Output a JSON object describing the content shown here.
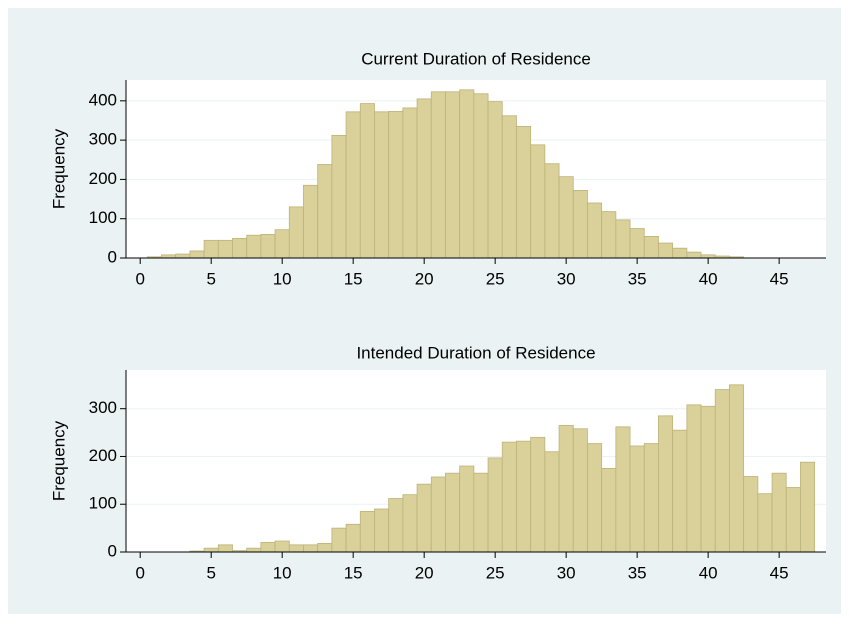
{
  "chart_data": [
    {
      "type": "histogram",
      "title": "Current Duration of Residence",
      "y_label": "Frequency",
      "bins": [
        0.5,
        1.5,
        2.5,
        3.5,
        4.5,
        5.5,
        6.5,
        7.5,
        8.5,
        9.5,
        10.5,
        11.5,
        12.5,
        13.5,
        14.5,
        15.5,
        16.5,
        17.5,
        18.5,
        19.5,
        20.5,
        21.5,
        22.5,
        23.5,
        24.5,
        25.5,
        26.5,
        27.5,
        28.5,
        29.5,
        30.5,
        31.5,
        32.5,
        33.5,
        34.5,
        35.5,
        36.5,
        37.5,
        38.5,
        39.5,
        40.5,
        41.5,
        42.5
      ],
      "values": [
        3,
        8,
        10,
        18,
        45,
        45,
        50,
        58,
        60,
        72,
        130,
        185,
        238,
        312,
        372,
        393,
        372,
        373,
        382,
        405,
        423,
        423,
        428,
        418,
        398,
        362,
        335,
        288,
        240,
        207,
        172,
        140,
        118,
        97,
        75,
        55,
        38,
        25,
        15,
        8,
        5,
        3
      ],
      "color": "#d9d09a",
      "xlim": [
        -1,
        48.3
      ],
      "xticks": [
        0,
        5,
        10,
        15,
        20,
        25,
        30,
        35,
        40,
        45
      ],
      "ylim": [
        0,
        453
      ],
      "yticks": [
        0,
        100,
        200,
        300,
        400
      ],
      "grid": true
    },
    {
      "type": "histogram",
      "title": "Intended Duration of Residence",
      "y_label": "Frequency",
      "bins": [
        3.5,
        4.5,
        5.5,
        6.5,
        7.5,
        8.5,
        9.5,
        10.5,
        11.5,
        12.5,
        13.5,
        14.5,
        15.5,
        16.5,
        17.5,
        18.5,
        19.5,
        20.5,
        21.5,
        22.5,
        23.5,
        24.5,
        25.5,
        26.5,
        27.5,
        28.5,
        29.5,
        30.5,
        31.5,
        32.5,
        33.5,
        34.5,
        35.5,
        36.5,
        37.5,
        38.5,
        39.5,
        40.5,
        41.5,
        42.5,
        43.5,
        44.5,
        45.5,
        46.5,
        47.5
      ],
      "values": [
        2,
        8,
        15,
        3,
        8,
        20,
        23,
        15,
        15,
        18,
        50,
        58,
        85,
        90,
        112,
        120,
        142,
        157,
        165,
        180,
        165,
        197,
        230,
        232,
        240,
        210,
        265,
        258,
        227,
        175,
        262,
        222,
        227,
        285,
        255,
        308,
        305,
        340,
        350,
        158,
        122,
        165,
        135,
        188
      ],
      "color": "#d9d09a",
      "xlim": [
        -1,
        48.3
      ],
      "xticks": [
        0,
        5,
        10,
        15,
        20,
        25,
        30,
        35,
        40,
        45
      ],
      "ylim": [
        0,
        381
      ],
      "yticks": [
        0,
        100,
        200,
        300
      ],
      "grid": true
    }
  ]
}
